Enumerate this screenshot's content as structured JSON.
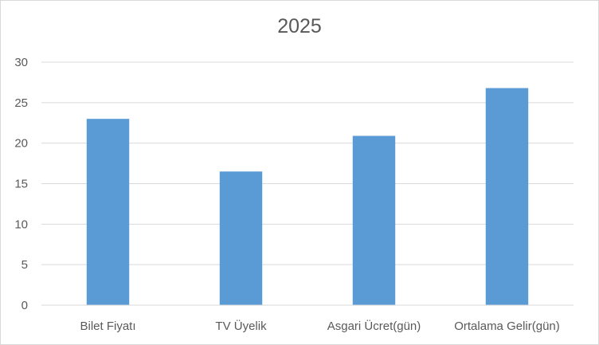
{
  "chart_data": {
    "type": "bar",
    "title": "2025",
    "categories": [
      "Bilet Fiyatı",
      "TV Üyelik",
      "Asgari Ücret(gün)",
      "Ortalama Gelir(gün)"
    ],
    "values": [
      23,
      16.5,
      20.9,
      26.8
    ],
    "xlabel": "",
    "ylabel": "",
    "ylim": [
      0,
      30
    ],
    "yticks": [
      0,
      5,
      10,
      15,
      20,
      25,
      30
    ],
    "grid": true,
    "legend": "none",
    "bar_color": "#5b9bd5",
    "grid_color": "#d9d9d9"
  }
}
